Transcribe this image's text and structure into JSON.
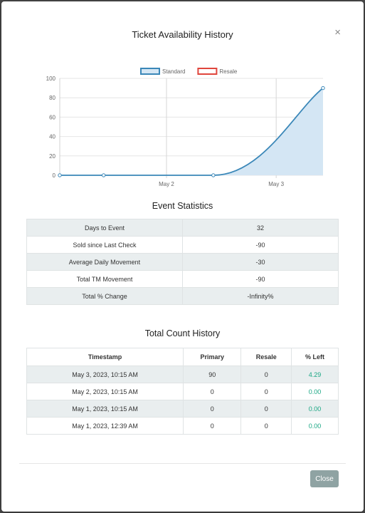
{
  "modal": {
    "title": "Ticket Availability History",
    "close_symbol": "×",
    "close_button_label": "Close"
  },
  "chart_data": {
    "type": "line",
    "title": "",
    "xlabel": "",
    "ylabel": "",
    "ylim": [
      0,
      100
    ],
    "yticks": [
      "0",
      "20",
      "40",
      "60",
      "80",
      "100"
    ],
    "xticks": [
      "May 2",
      "May 3"
    ],
    "legend": "top",
    "grid": true,
    "series": [
      {
        "name": "Standard",
        "color": "#3a87b8",
        "fill": "#d4e6f4",
        "points": [
          {
            "t": "May 1, 2023, 12:39 AM",
            "y": 0
          },
          {
            "t": "May 1, 2023, 10:15 AM",
            "y": 0
          },
          {
            "t": "May 2, 2023, 10:15 AM",
            "y": 0
          },
          {
            "t": "May 3, 2023, 10:15 AM",
            "y": 90
          }
        ]
      },
      {
        "name": "Resale",
        "color": "#e0463c",
        "points": []
      }
    ]
  },
  "stats": {
    "title": "Event Statistics",
    "rows": [
      {
        "label": "Days to Event",
        "value": "32"
      },
      {
        "label": "Sold since Last Check",
        "value": "-90"
      },
      {
        "label": "Average Daily Movement",
        "value": "-30"
      },
      {
        "label": "Total TM Movement",
        "value": "-90"
      },
      {
        "label": "Total % Change",
        "value": "-Infinity%"
      }
    ]
  },
  "history": {
    "title": "Total Count History",
    "headers": [
      "Timestamp",
      "Primary",
      "Resale",
      "% Left"
    ],
    "rows": [
      {
        "timestamp": "May 3, 2023, 10:15 AM",
        "primary": "90",
        "resale": "0",
        "pct_left": "4.29"
      },
      {
        "timestamp": "May 2, 2023, 10:15 AM",
        "primary": "0",
        "resale": "0",
        "pct_left": "0.00"
      },
      {
        "timestamp": "May 1, 2023, 10:15 AM",
        "primary": "0",
        "resale": "0",
        "pct_left": "0.00"
      },
      {
        "timestamp": "May 1, 2023, 12:39 AM",
        "primary": "0",
        "resale": "0",
        "pct_left": "0.00"
      }
    ]
  }
}
